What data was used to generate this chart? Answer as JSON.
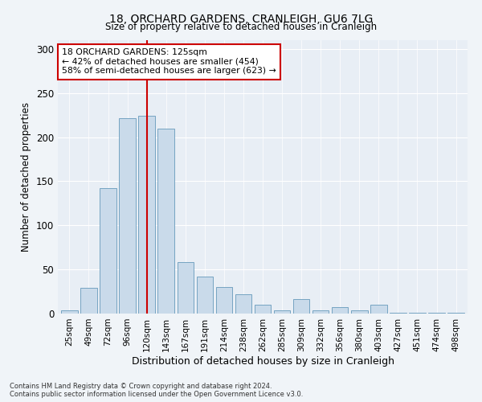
{
  "title": "18, ORCHARD GARDENS, CRANLEIGH, GU6 7LG",
  "subtitle": "Size of property relative to detached houses in Cranleigh",
  "xlabel": "Distribution of detached houses by size in Cranleigh",
  "ylabel": "Number of detached properties",
  "categories": [
    "25sqm",
    "49sqm",
    "72sqm",
    "96sqm",
    "120sqm",
    "143sqm",
    "167sqm",
    "191sqm",
    "214sqm",
    "238sqm",
    "262sqm",
    "285sqm",
    "309sqm",
    "332sqm",
    "356sqm",
    "380sqm",
    "403sqm",
    "427sqm",
    "451sqm",
    "474sqm",
    "498sqm"
  ],
  "values": [
    4,
    29,
    142,
    222,
    224,
    210,
    58,
    42,
    30,
    22,
    10,
    4,
    16,
    4,
    7,
    4,
    10,
    1,
    1,
    1,
    1
  ],
  "bar_color": "#c9daea",
  "bar_edge_color": "#6699bb",
  "vline_x": 4,
  "vline_color": "#cc0000",
  "annotation_text": "18 ORCHARD GARDENS: 125sqm\n← 42% of detached houses are smaller (454)\n58% of semi-detached houses are larger (623) →",
  "annotation_box_color": "white",
  "annotation_box_edge": "#cc0000",
  "ylim": [
    0,
    310
  ],
  "yticks": [
    0,
    50,
    100,
    150,
    200,
    250,
    300
  ],
  "footer_line1": "Contains HM Land Registry data © Crown copyright and database right 2024.",
  "footer_line2": "Contains public sector information licensed under the Open Government Licence v3.0.",
  "bg_color": "#f0f4f8",
  "plot_bg_color": "#e8eef5"
}
